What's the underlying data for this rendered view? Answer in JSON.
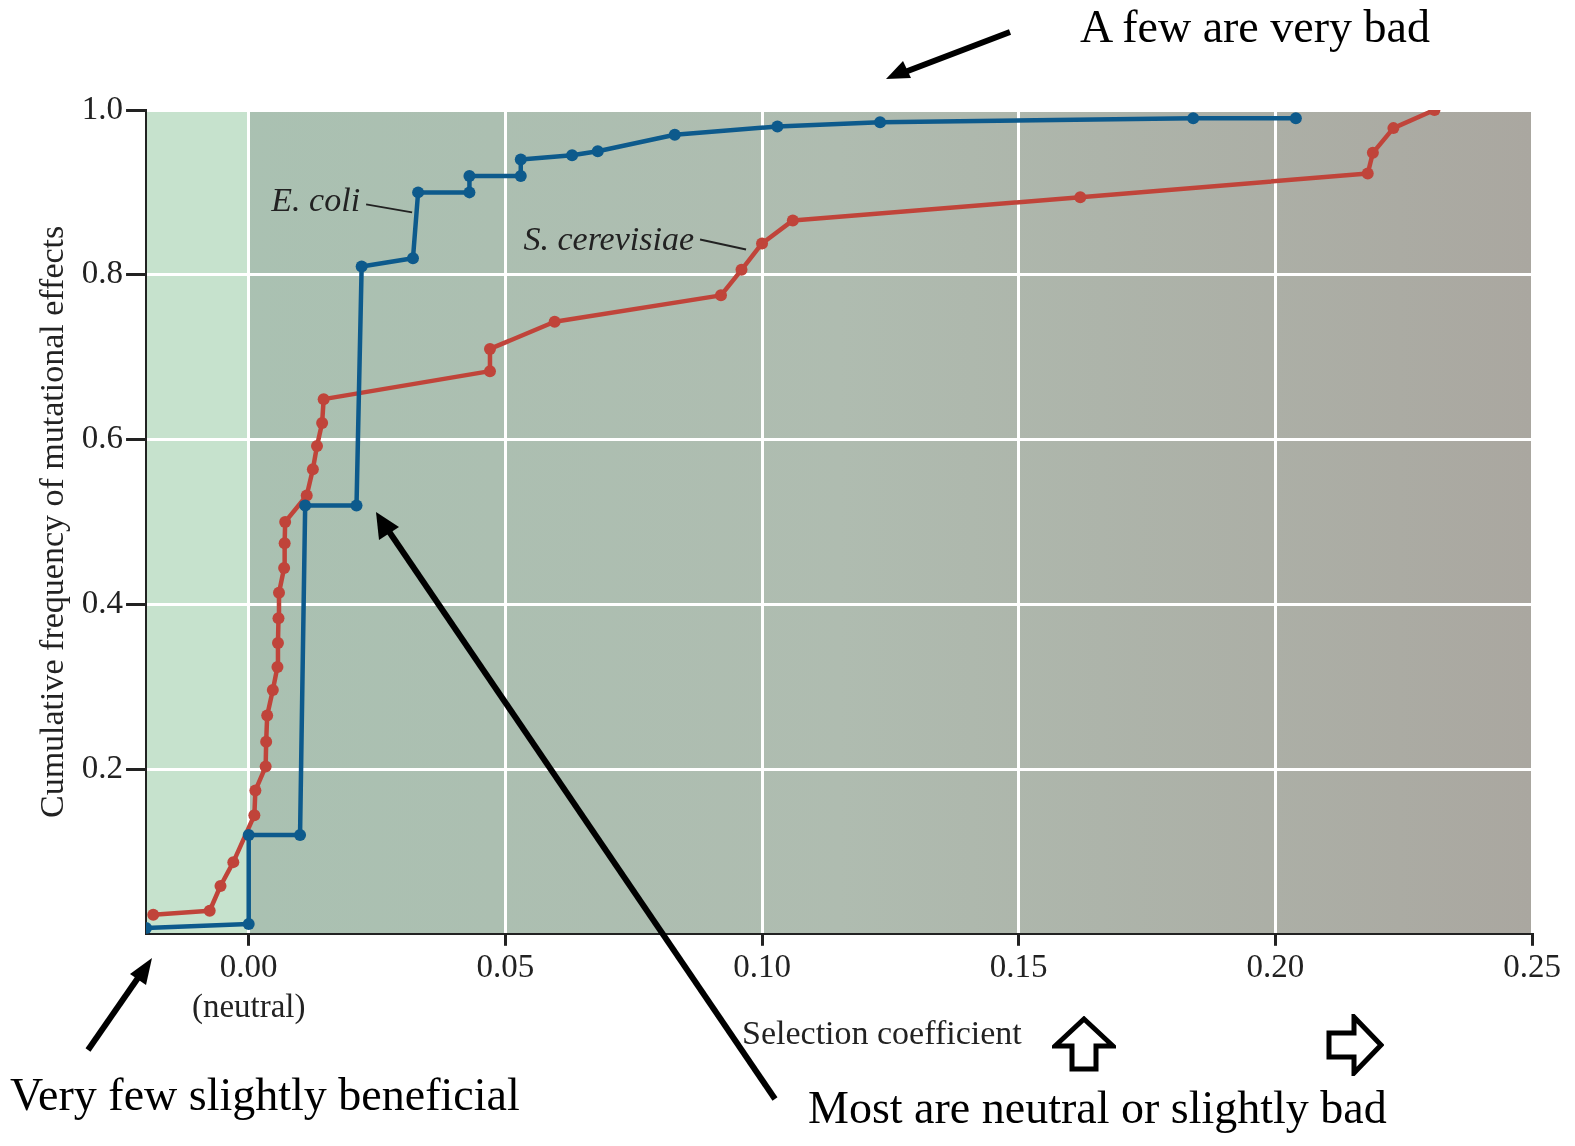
{
  "chart_data": {
    "type": "line",
    "xlabel": "Selection coefficient",
    "ylabel": "Cumulative frequency of mutational effects",
    "annotations": [
      "A few are very bad",
      "Very few slightly beneficial",
      "Most are neutral or slightly bad"
    ],
    "xlim": [
      -0.02,
      0.25
    ],
    "ylim": [
      0,
      1
    ],
    "xticks": [
      {
        "value": 0,
        "label": "0.00\n(neutral)"
      },
      {
        "value": 0.05,
        "label": "0.05"
      },
      {
        "value": 0.1,
        "label": "0.10"
      },
      {
        "value": 0.15,
        "label": "0.15"
      },
      {
        "value": 0.2,
        "label": "0.20"
      },
      {
        "value": 0.25,
        "label": "0.25"
      }
    ],
    "yticks": [
      0.2,
      0.4,
      0.6,
      0.8,
      {
        "value": 1,
        "label": "1.0"
      }
    ],
    "grid": true,
    "legend": false,
    "marker": "circle",
    "line_style": "solid",
    "bands": [
      {
        "axis": "x",
        "from": -0.02,
        "to": 0,
        "color": "#c6e2cd"
      }
    ],
    "series": [
      {
        "name": "E. coli",
        "color": "#0d5a8c",
        "x": [
          -0.02,
          0.0,
          0.0,
          0.01,
          0.011,
          0.021,
          0.022,
          0.032,
          0.033,
          0.043,
          0.043,
          0.053,
          0.053,
          0.063,
          0.068,
          0.083,
          0.103,
          0.123,
          0.184,
          0.204
        ],
        "values": [
          0.007,
          0.012,
          0.12,
          0.12,
          0.52,
          0.52,
          0.81,
          0.82,
          0.9,
          0.9,
          0.92,
          0.92,
          0.94,
          0.945,
          0.95,
          0.97,
          0.98,
          0.985,
          0.99,
          0.99
        ]
      },
      {
        "name": "S. cerevisiae",
        "color": "#c0443a",
        "x": [
          -0.0186,
          -0.0076,
          -0.0055,
          -0.003,
          0.0011,
          0.0013,
          0.0033,
          0.0034,
          0.0036,
          0.0047,
          0.0056,
          0.0057,
          0.0058,
          0.0059,
          0.0069,
          0.007,
          0.0071,
          0.0113,
          0.0125,
          0.0133,
          0.0143,
          0.0146,
          0.047,
          0.047,
          0.0596,
          0.092,
          0.096,
          0.1,
          0.106,
          0.162,
          0.218,
          0.219,
          0.223,
          0.231
        ],
        "values": [
          0.023,
          0.028,
          0.058,
          0.087,
          0.144,
          0.174,
          0.203,
          0.233,
          0.265,
          0.296,
          0.324,
          0.353,
          0.383,
          0.414,
          0.444,
          0.474,
          0.5,
          0.532,
          0.564,
          0.592,
          0.62,
          0.649,
          0.683,
          0.71,
          0.743,
          0.775,
          0.806,
          0.838,
          0.866,
          0.894,
          0.923,
          0.948,
          0.978,
          1.0
        ]
      }
    ]
  }
}
